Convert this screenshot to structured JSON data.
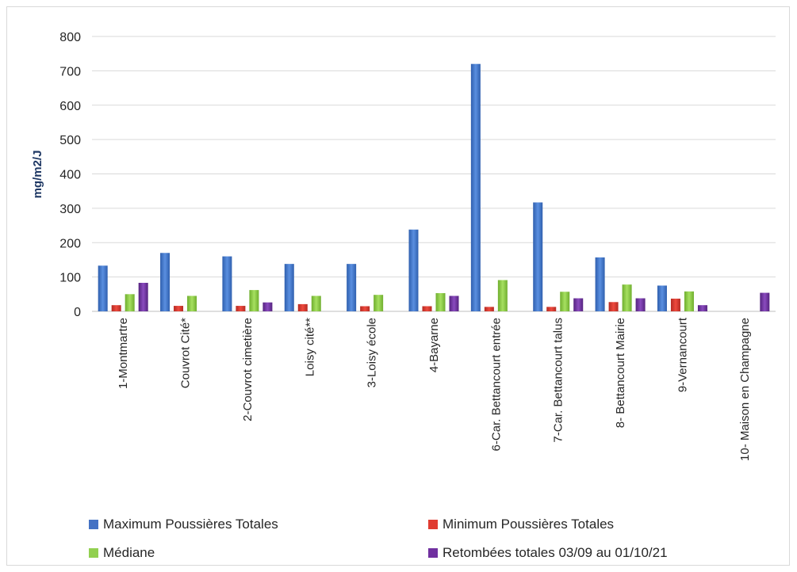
{
  "chart_data": {
    "type": "bar",
    "ylabel": "mg/m2/J",
    "ylim": [
      0,
      800
    ],
    "yticks": [
      0,
      100,
      200,
      300,
      400,
      500,
      600,
      700,
      800
    ],
    "grid": true,
    "legend_position": "bottom",
    "categories": [
      "1-Montmartre",
      "Couvrot Cité*",
      "2-Couvrot cimetière",
      "Loisy cité**",
      "3-Loisy école",
      "4-Bayarne",
      "6-Car. Bettancourt entrée",
      "7-Car. Bettancourt talus",
      "8- Bettancourt Mairie",
      "9-Vernancourt",
      "10- Maison en Champagne"
    ],
    "series": [
      {
        "name": "Maximum Poussières Totales",
        "color": "#4472c4",
        "values": [
          133,
          170,
          160,
          138,
          138,
          238,
          720,
          317,
          157,
          75,
          null
        ]
      },
      {
        "name": "Minimum Poussières Totales",
        "color": "#e03c31",
        "values": [
          18,
          16,
          16,
          21,
          15,
          15,
          13,
          13,
          27,
          37,
          null
        ]
      },
      {
        "name": "Médiane",
        "color": "#92d050",
        "values": [
          50,
          45,
          62,
          45,
          48,
          53,
          91,
          57,
          78,
          58,
          null
        ]
      },
      {
        "name": "Retombées totales 03/09 au 01/10/21",
        "color": "#7030a0",
        "values": [
          83,
          null,
          26,
          null,
          null,
          45,
          null,
          38,
          38,
          18,
          54
        ]
      }
    ]
  }
}
